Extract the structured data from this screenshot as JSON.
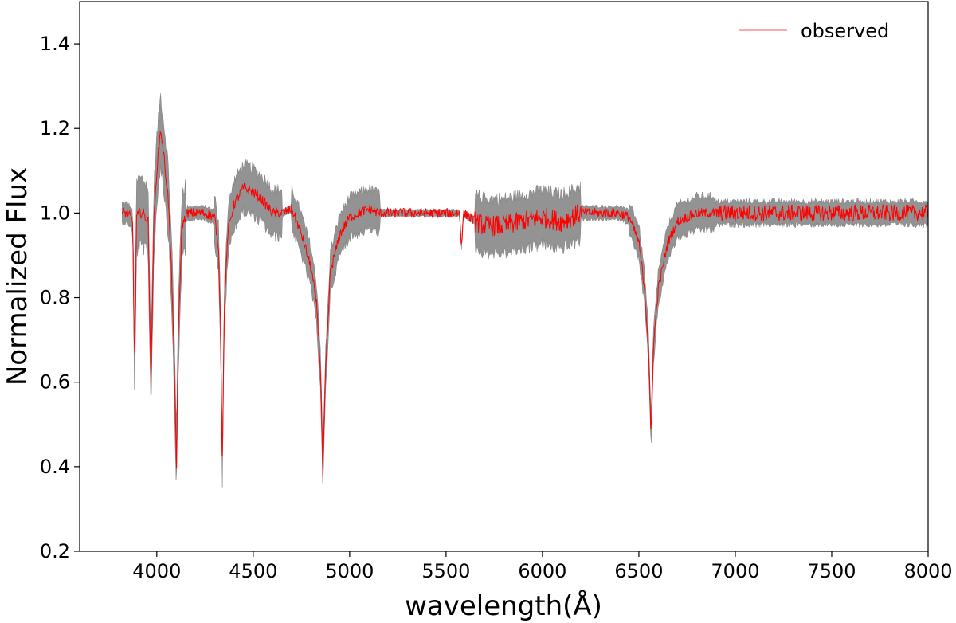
{
  "chart_data": {
    "type": "line",
    "xlabel": "wavelength(Å)",
    "ylabel": "Normalized Flux",
    "xlim": [
      3600,
      8000
    ],
    "ylim": [
      0.2,
      1.5
    ],
    "x_ticks": [
      4000,
      4500,
      5000,
      5500,
      6000,
      6500,
      7000,
      7500,
      8000
    ],
    "y_ticks": [
      0.2,
      0.4,
      0.6,
      0.8,
      1.0,
      1.2,
      1.4
    ],
    "grid": false,
    "legend_position": "top-right",
    "series": [
      {
        "name": "observed",
        "color": "#ff0000",
        "x": [
          3820,
          3850,
          3875,
          3885,
          3895,
          3910,
          3930,
          3955,
          3970,
          3985,
          4000,
          4020,
          4040,
          4060,
          4080,
          4095,
          4102,
          4110,
          4130,
          4160,
          4200,
          4250,
          4300,
          4320,
          4330,
          4340,
          4350,
          4370,
          4400,
          4450,
          4500,
          4550,
          4600,
          4650,
          4700,
          4750,
          4800,
          4830,
          4850,
          4861,
          4875,
          4900,
          4950,
          5000,
          5050,
          5100,
          5150,
          5200,
          5300,
          5400,
          5500,
          5570,
          5580,
          5590,
          5650,
          5700,
          5800,
          5900,
          6000,
          6100,
          6200,
          6300,
          6400,
          6450,
          6500,
          6530,
          6550,
          6563,
          6575,
          6600,
          6650,
          6700,
          6750,
          6800,
          6850,
          6900,
          7000,
          7200,
          7400,
          7600,
          7800,
          8000
        ],
        "y": [
          1.0,
          1.0,
          0.98,
          0.62,
          0.99,
          1.0,
          1.0,
          0.98,
          0.6,
          0.98,
          1.1,
          1.2,
          1.12,
          1.03,
          0.82,
          0.55,
          0.4,
          0.68,
          0.97,
          1.0,
          1.0,
          1.0,
          0.99,
          0.92,
          0.75,
          0.4,
          0.78,
          0.96,
          1.02,
          1.06,
          1.05,
          1.03,
          1.0,
          1.0,
          1.01,
          0.95,
          0.87,
          0.78,
          0.62,
          0.38,
          0.62,
          0.86,
          0.95,
          0.99,
          1.0,
          1.01,
          1.0,
          1.0,
          1.0,
          1.0,
          1.0,
          1.0,
          0.92,
          1.0,
          0.98,
          0.97,
          0.97,
          0.98,
          0.99,
          0.98,
          1.0,
          1.0,
          1.0,
          0.99,
          0.93,
          0.82,
          0.68,
          0.47,
          0.68,
          0.82,
          0.93,
          0.98,
          0.99,
          1.0,
          1.0,
          1.0,
          1.0,
          1.0,
          1.0,
          1.0,
          1.0,
          1.0
        ]
      }
    ],
    "model_band_color": "#808080"
  }
}
